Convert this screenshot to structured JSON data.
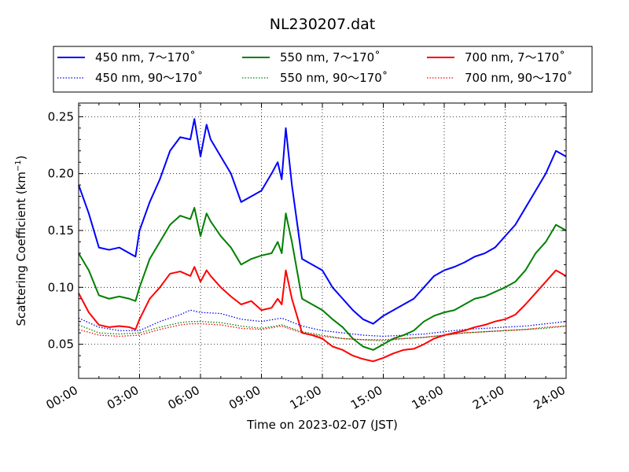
{
  "chart_data": {
    "type": "line",
    "title": "NL230207.dat",
    "xlabel": "Time on 2023-02-07 (JST)",
    "ylabel_main": "Scattering Coefficient (km",
    "ylabel_sup": "−1",
    "ylabel_close": ")",
    "xlim": [
      0,
      24
    ],
    "ylim": [
      0.02,
      0.262
    ],
    "xticks": [
      0,
      3,
      6,
      9,
      12,
      15,
      18,
      21,
      24
    ],
    "xtick_labels": [
      "00:00",
      "03:00",
      "06:00",
      "09:00",
      "12:00",
      "15:00",
      "18:00",
      "21:00",
      "24:00"
    ],
    "yticks": [
      0.05,
      0.1,
      0.15,
      0.2,
      0.25
    ],
    "ytick_labels": [
      "0.05",
      "0.10",
      "0.15",
      "0.20",
      "0.25"
    ],
    "grid": true,
    "legend_placement": "top",
    "series": [
      {
        "name": "450 nm, 7～170˚",
        "color": "#0000ff",
        "style": "solid",
        "x": [
          0,
          0.5,
          1,
          1.5,
          2,
          2.5,
          2.8,
          3,
          3.5,
          4,
          4.5,
          5,
          5.5,
          5.7,
          6,
          6.3,
          6.5,
          7,
          7.5,
          8,
          8.5,
          9,
          9.5,
          9.8,
          10,
          10.2,
          10.5,
          11,
          11.5,
          12,
          12.5,
          13,
          13.5,
          14,
          14.5,
          15,
          15.5,
          16,
          16.5,
          17,
          17.5,
          18,
          18.5,
          19,
          19.5,
          20,
          20.5,
          21,
          21.5,
          22,
          22.5,
          23,
          23.5,
          24
        ],
        "values": [
          0.19,
          0.165,
          0.135,
          0.133,
          0.135,
          0.13,
          0.127,
          0.15,
          0.175,
          0.195,
          0.22,
          0.232,
          0.23,
          0.248,
          0.215,
          0.243,
          0.23,
          0.215,
          0.2,
          0.175,
          0.18,
          0.185,
          0.2,
          0.21,
          0.195,
          0.24,
          0.19,
          0.125,
          0.12,
          0.115,
          0.1,
          0.09,
          0.08,
          0.072,
          0.068,
          0.075,
          0.08,
          0.085,
          0.09,
          0.1,
          0.11,
          0.115,
          0.118,
          0.122,
          0.127,
          0.13,
          0.135,
          0.145,
          0.155,
          0.17,
          0.185,
          0.2,
          0.22,
          0.215
        ]
      },
      {
        "name": "450 nm, 90～170˚",
        "color": "#0000ff",
        "style": "dotted",
        "x": [
          0,
          1,
          2,
          3,
          4,
          5,
          5.5,
          6,
          7,
          8,
          9,
          10,
          11,
          12,
          13,
          14,
          15,
          16,
          17,
          18,
          19,
          20,
          21,
          22,
          23,
          24
        ],
        "values": [
          0.073,
          0.065,
          0.062,
          0.062,
          0.07,
          0.076,
          0.08,
          0.078,
          0.077,
          0.072,
          0.07,
          0.073,
          0.066,
          0.062,
          0.06,
          0.058,
          0.057,
          0.058,
          0.059,
          0.061,
          0.063,
          0.064,
          0.065,
          0.066,
          0.068,
          0.07
        ]
      },
      {
        "name": "550 nm, 7～170˚",
        "color": "#008000",
        "style": "solid",
        "x": [
          0,
          0.5,
          1,
          1.5,
          2,
          2.5,
          2.8,
          3,
          3.5,
          4,
          4.5,
          5,
          5.5,
          5.7,
          6,
          6.3,
          6.5,
          7,
          7.5,
          8,
          8.5,
          9,
          9.5,
          9.8,
          10,
          10.2,
          10.5,
          11,
          11.5,
          12,
          12.5,
          13,
          13.5,
          14,
          14.5,
          15,
          15.5,
          16,
          16.5,
          17,
          17.5,
          18,
          18.5,
          19,
          19.5,
          20,
          20.5,
          21,
          21.5,
          22,
          22.5,
          23,
          23.5,
          24
        ],
        "values": [
          0.13,
          0.115,
          0.093,
          0.09,
          0.092,
          0.09,
          0.088,
          0.1,
          0.125,
          0.14,
          0.155,
          0.163,
          0.16,
          0.17,
          0.145,
          0.165,
          0.158,
          0.145,
          0.135,
          0.12,
          0.125,
          0.128,
          0.13,
          0.14,
          0.13,
          0.165,
          0.14,
          0.09,
          0.085,
          0.08,
          0.072,
          0.065,
          0.055,
          0.048,
          0.045,
          0.05,
          0.055,
          0.058,
          0.062,
          0.07,
          0.075,
          0.078,
          0.08,
          0.085,
          0.09,
          0.092,
          0.096,
          0.1,
          0.105,
          0.115,
          0.13,
          0.14,
          0.155,
          0.15
        ]
      },
      {
        "name": "550 nm, 90～170˚",
        "color": "#008000",
        "style": "dotted",
        "x": [
          0,
          1,
          2,
          3,
          4,
          5,
          5.5,
          6,
          7,
          8,
          9,
          10,
          11,
          12,
          13,
          14,
          15,
          16,
          17,
          18,
          19,
          20,
          21,
          22,
          23,
          24
        ],
        "values": [
          0.067,
          0.06,
          0.059,
          0.06,
          0.065,
          0.069,
          0.07,
          0.07,
          0.069,
          0.066,
          0.064,
          0.067,
          0.061,
          0.058,
          0.055,
          0.054,
          0.053,
          0.055,
          0.056,
          0.058,
          0.06,
          0.061,
          0.062,
          0.063,
          0.064,
          0.066
        ]
      },
      {
        "name": "700 nm, 7～170˚",
        "color": "#ff0000",
        "style": "solid",
        "x": [
          0,
          0.5,
          1,
          1.5,
          2,
          2.5,
          2.8,
          3,
          3.5,
          4,
          4.5,
          5,
          5.5,
          5.7,
          6,
          6.3,
          6.5,
          7,
          7.5,
          8,
          8.5,
          9,
          9.5,
          9.8,
          10,
          10.2,
          10.5,
          11,
          11.5,
          12,
          12.5,
          13,
          13.5,
          14,
          14.5,
          15,
          15.5,
          16,
          16.5,
          17,
          17.5,
          18,
          18.5,
          19,
          19.5,
          20,
          20.5,
          21,
          21.5,
          22,
          22.5,
          23,
          23.5,
          24
        ],
        "values": [
          0.095,
          0.078,
          0.067,
          0.065,
          0.066,
          0.065,
          0.063,
          0.072,
          0.09,
          0.1,
          0.112,
          0.114,
          0.11,
          0.118,
          0.105,
          0.115,
          0.11,
          0.1,
          0.092,
          0.085,
          0.088,
          0.08,
          0.082,
          0.09,
          0.085,
          0.115,
          0.09,
          0.06,
          0.058,
          0.055,
          0.048,
          0.045,
          0.04,
          0.037,
          0.035,
          0.038,
          0.042,
          0.045,
          0.046,
          0.05,
          0.055,
          0.058,
          0.06,
          0.062,
          0.065,
          0.067,
          0.07,
          0.072,
          0.076,
          0.085,
          0.095,
          0.105,
          0.115,
          0.11
        ]
      },
      {
        "name": "700 nm, 90～170˚",
        "color": "#ff0000",
        "style": "dotted",
        "x": [
          0,
          1,
          2,
          3,
          4,
          5,
          5.5,
          6,
          7,
          8,
          9,
          10,
          11,
          12,
          13,
          14,
          15,
          16,
          17,
          18,
          19,
          20,
          21,
          22,
          23,
          24
        ],
        "values": [
          0.063,
          0.058,
          0.057,
          0.058,
          0.063,
          0.067,
          0.068,
          0.068,
          0.067,
          0.064,
          0.063,
          0.066,
          0.06,
          0.057,
          0.055,
          0.054,
          0.054,
          0.055,
          0.056,
          0.058,
          0.06,
          0.061,
          0.062,
          0.063,
          0.065,
          0.066
        ]
      }
    ]
  }
}
